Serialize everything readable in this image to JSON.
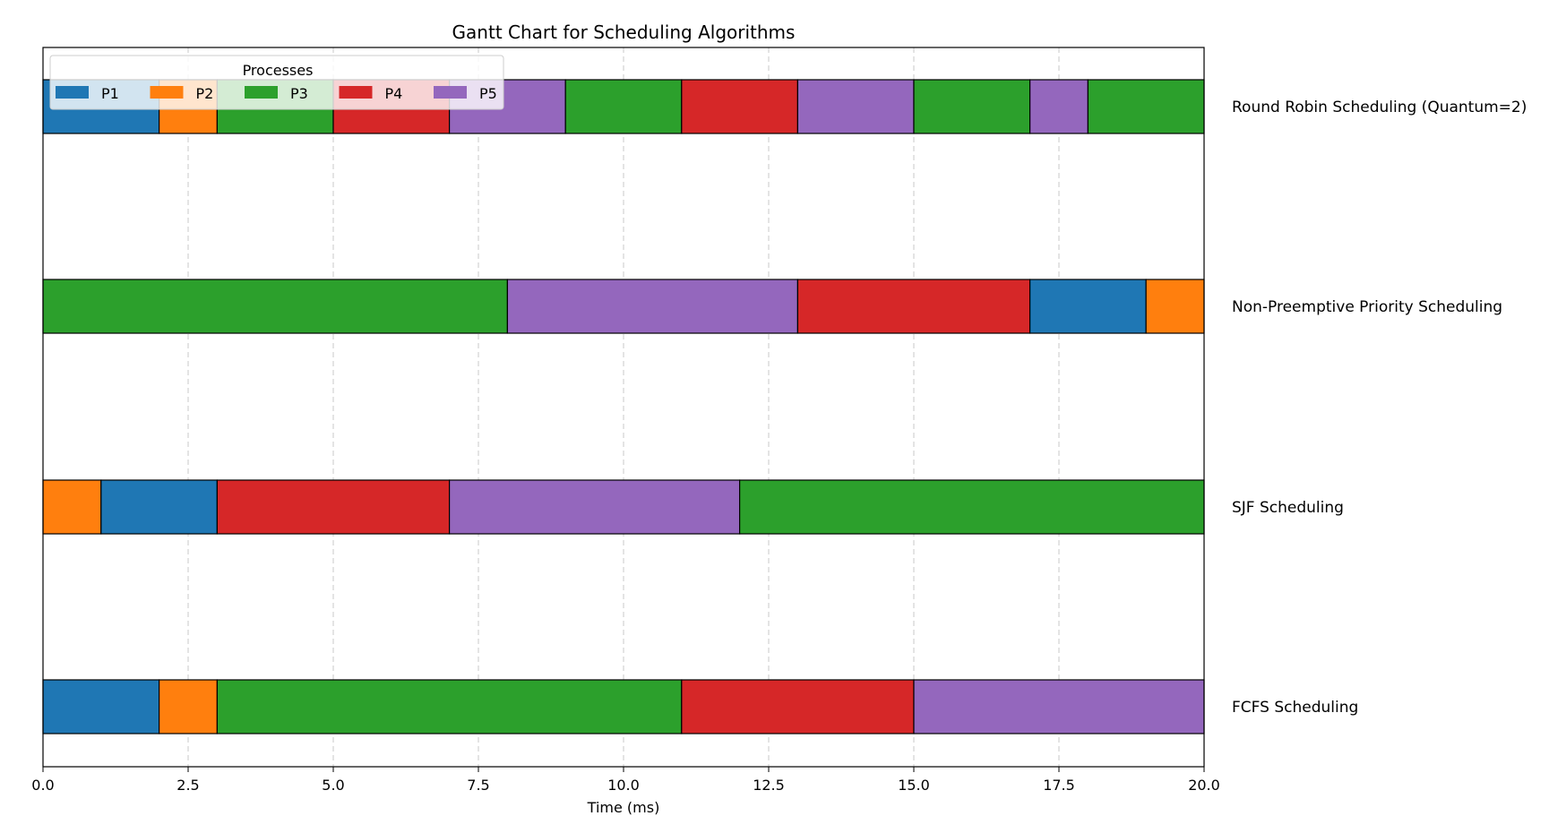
{
  "chart_data": {
    "type": "gantt",
    "title": "Gantt Chart for Scheduling Algorithms",
    "xlabel": "Time (ms)",
    "xlim": [
      0,
      20
    ],
    "xticks": [
      "0.0",
      "2.5",
      "5.0",
      "7.5",
      "10.0",
      "12.5",
      "15.0",
      "17.5",
      "20.0"
    ],
    "grid": "x-dashed",
    "legend": {
      "title": "Processes",
      "placement": "top-left",
      "entries": [
        "P1",
        "P2",
        "P3",
        "P4",
        "P5"
      ]
    },
    "colors": {
      "P1": "#1f77b4",
      "P2": "#ff7f0e",
      "P3": "#2ca02c",
      "P4": "#d62728",
      "P5": "#9467bd"
    },
    "rows": [
      {
        "label": "Round Robin Scheduling (Quantum=2)",
        "segments": [
          {
            "process": "P1",
            "start": 0,
            "end": 2
          },
          {
            "process": "P2",
            "start": 2,
            "end": 3
          },
          {
            "process": "P3",
            "start": 3,
            "end": 5
          },
          {
            "process": "P4",
            "start": 5,
            "end": 7
          },
          {
            "process": "P5",
            "start": 7,
            "end": 9
          },
          {
            "process": "P3",
            "start": 9,
            "end": 11
          },
          {
            "process": "P4",
            "start": 11,
            "end": 13
          },
          {
            "process": "P5",
            "start": 13,
            "end": 15
          },
          {
            "process": "P3",
            "start": 15,
            "end": 17
          },
          {
            "process": "P5",
            "start": 17,
            "end": 18
          },
          {
            "process": "P3",
            "start": 18,
            "end": 20
          }
        ]
      },
      {
        "label": "Non-Preemptive Priority Scheduling",
        "segments": [
          {
            "process": "P3",
            "start": 0,
            "end": 8
          },
          {
            "process": "P5",
            "start": 8,
            "end": 13
          },
          {
            "process": "P4",
            "start": 13,
            "end": 17
          },
          {
            "process": "P1",
            "start": 17,
            "end": 19
          },
          {
            "process": "P2",
            "start": 19,
            "end": 20
          }
        ]
      },
      {
        "label": "SJF Scheduling",
        "segments": [
          {
            "process": "P2",
            "start": 0,
            "end": 1
          },
          {
            "process": "P1",
            "start": 1,
            "end": 3
          },
          {
            "process": "P4",
            "start": 3,
            "end": 7
          },
          {
            "process": "P5",
            "start": 7,
            "end": 12
          },
          {
            "process": "P3",
            "start": 12,
            "end": 20
          }
        ]
      },
      {
        "label": "FCFS Scheduling",
        "segments": [
          {
            "process": "P1",
            "start": 0,
            "end": 2
          },
          {
            "process": "P2",
            "start": 2,
            "end": 3
          },
          {
            "process": "P3",
            "start": 3,
            "end": 11
          },
          {
            "process": "P4",
            "start": 11,
            "end": 15
          },
          {
            "process": "P5",
            "start": 15,
            "end": 20
          }
        ]
      }
    ]
  }
}
